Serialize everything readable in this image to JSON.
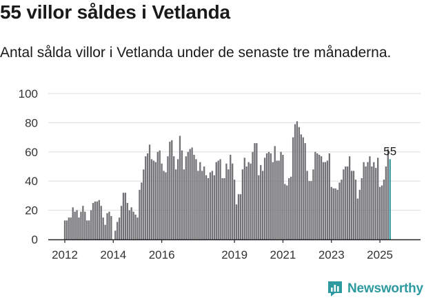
{
  "title": "55 villor såldes i Vetlanda",
  "subtitle": "Antal sålda villor i Vetlanda under de senaste tre månaderna.",
  "brand": {
    "name": "Newsworthy"
  },
  "colors": {
    "bar": "#727176",
    "highlight": "#2d9a9f",
    "grid": "#dddddd",
    "text": "#1a1a1a",
    "brand": "#2d9a9f"
  },
  "chart_data": {
    "type": "bar",
    "x_start": "2012-01",
    "frequency": "monthly",
    "x_ticks": [
      "2012",
      "2014",
      "2016",
      "2019",
      "2021",
      "2023",
      "2025"
    ],
    "y_ticks": [
      0,
      20,
      40,
      60,
      80,
      100
    ],
    "ylim": [
      0,
      100
    ],
    "grid": true,
    "highlight_label": "55",
    "values": [
      13,
      13,
      15,
      15,
      22,
      19,
      20,
      15,
      19,
      23,
      19,
      13,
      13,
      20,
      25,
      26,
      26,
      27,
      23,
      15,
      10,
      18,
      19,
      16,
      0,
      6,
      12,
      15,
      23,
      32,
      32,
      25,
      20,
      22,
      19,
      17,
      15,
      34,
      39,
      48,
      57,
      59,
      65,
      55,
      54,
      53,
      60,
      61,
      52,
      47,
      46,
      57,
      67,
      68,
      57,
      48,
      55,
      71,
      61,
      48,
      57,
      60,
      62,
      63,
      58,
      55,
      47,
      53,
      47,
      50,
      44,
      42,
      46,
      47,
      44,
      53,
      54,
      55,
      42,
      42,
      52,
      48,
      58,
      52,
      41,
      24,
      31,
      31,
      48,
      56,
      50,
      53,
      52,
      60,
      66,
      66,
      44,
      51,
      47,
      56,
      59,
      60,
      59,
      53,
      64,
      54,
      54,
      60,
      58,
      38,
      37,
      42,
      43,
      70,
      79,
      81,
      77,
      72,
      70,
      66,
      47,
      40,
      40,
      48,
      60,
      59,
      58,
      57,
      53,
      53,
      54,
      59,
      36,
      35,
      35,
      34,
      39,
      41,
      48,
      50,
      50,
      57,
      47,
      47,
      41,
      28,
      34,
      42,
      53,
      50,
      53,
      57,
      50,
      53,
      49,
      56,
      36,
      37,
      41,
      50,
      62,
      55
    ]
  }
}
